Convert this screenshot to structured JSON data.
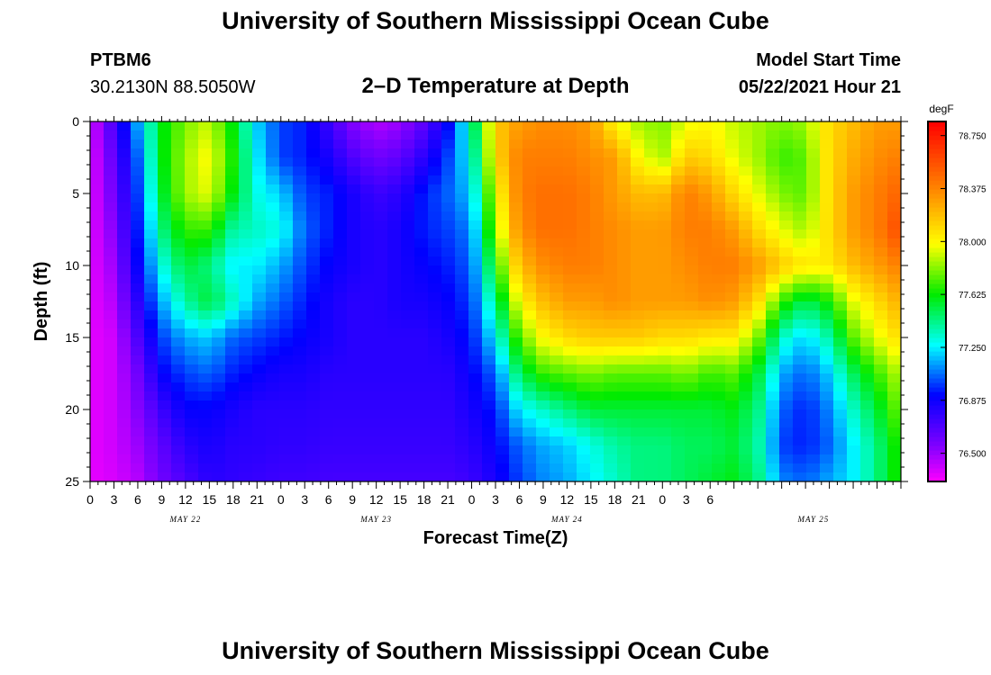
{
  "header": {
    "title": "University of Southern Mississippi Ocean Cube",
    "station_id": "PTBM6",
    "coordinates": "30.2130N  88.5050W",
    "plot_title": "2–D Temperature at Depth",
    "start_label": "Model Start Time",
    "start_time": "05/22/2021 Hour 21"
  },
  "footer": {
    "title": "University of Southern Mississippi Ocean Cube"
  },
  "chart_data": {
    "type": "heatmap",
    "title": "2–D Temperature at Depth",
    "xlabel": "Forecast Time(Z)",
    "ylabel": "Depth (ft)",
    "x_unit": "hours since model start (05/22/2021 21Z)",
    "x_range": [
      -21,
      81
    ],
    "y_range": [
      0,
      25
    ],
    "y_ticks": [
      0,
      5,
      10,
      15,
      20,
      25
    ],
    "x_tick_labels": [
      "0",
      "3",
      "6",
      "9",
      "12",
      "15",
      "18",
      "21",
      "0",
      "3",
      "6",
      "9",
      "12",
      "15",
      "18",
      "21",
      "0",
      "3",
      "6",
      "9",
      "12",
      "15",
      "18",
      "21",
      "0",
      "3",
      "6"
    ],
    "date_labels": [
      "MAY 22",
      "MAY 23",
      "MAY 24",
      "MAY 25"
    ],
    "colorbar": {
      "unit": "degF",
      "min": 76.3,
      "max": 78.85,
      "ticks": [
        76.5,
        76.875,
        77.25,
        77.625,
        78.0,
        78.375,
        78.75
      ],
      "tick_labels": [
        "76.500",
        "76.875",
        "77.250",
        "77.625",
        "78.000",
        "78.375",
        "78.750"
      ]
    },
    "depths": [
      0,
      2.5,
      5,
      7.5,
      10,
      12.5,
      15,
      17.5,
      20,
      22.5,
      25
    ],
    "times": [
      -21,
      -18,
      -15,
      -12,
      -9,
      -6,
      -3,
      0,
      3,
      6,
      9,
      12,
      15,
      18,
      21,
      24,
      27,
      30,
      33,
      36,
      39,
      42,
      45,
      48,
      51,
      54,
      57,
      60,
      63,
      66,
      69,
      72,
      75,
      78,
      81
    ],
    "values": [
      [
        76.37,
        76.72,
        77.15,
        77.6,
        77.8,
        77.9,
        77.6,
        77.2,
        77.0,
        76.95,
        76.75,
        76.55,
        76.45,
        76.5,
        76.65,
        76.9,
        77.4,
        78.15,
        78.3,
        78.35,
        78.35,
        78.3,
        78.0,
        77.85,
        77.8,
        77.95,
        78.0,
        77.9,
        77.85,
        77.8,
        77.85,
        78.1,
        78.2,
        78.3,
        78.3
      ],
      [
        76.35,
        76.65,
        77.05,
        77.6,
        77.85,
        78.0,
        77.65,
        77.25,
        77.0,
        76.95,
        76.85,
        76.7,
        76.6,
        76.65,
        76.8,
        77.0,
        77.3,
        78.1,
        78.4,
        78.4,
        78.4,
        78.35,
        78.3,
        78.0,
        77.85,
        78.15,
        78.1,
        77.95,
        77.85,
        77.7,
        77.75,
        78.1,
        78.25,
        78.35,
        78.4
      ],
      [
        76.35,
        76.6,
        77.0,
        77.55,
        77.85,
        77.95,
        77.6,
        77.3,
        77.2,
        77.0,
        76.95,
        76.85,
        76.75,
        76.8,
        76.95,
        77.05,
        77.2,
        77.95,
        78.4,
        78.45,
        78.45,
        78.4,
        78.3,
        78.2,
        78.2,
        78.4,
        78.3,
        78.1,
        77.95,
        77.8,
        77.75,
        78.1,
        78.3,
        78.4,
        78.5
      ],
      [
        76.35,
        76.55,
        76.95,
        77.45,
        77.7,
        77.7,
        77.4,
        77.35,
        77.3,
        77.05,
        76.95,
        76.85,
        76.8,
        76.85,
        76.95,
        77.0,
        77.1,
        77.85,
        78.35,
        78.45,
        78.45,
        78.4,
        78.35,
        78.3,
        78.3,
        78.4,
        78.4,
        78.3,
        78.1,
        77.95,
        77.85,
        78.1,
        78.3,
        78.4,
        78.6
      ],
      [
        76.35,
        76.5,
        76.9,
        77.3,
        77.55,
        77.45,
        77.25,
        77.25,
        77.15,
        77.0,
        76.9,
        76.85,
        76.8,
        76.85,
        76.9,
        76.95,
        77.05,
        77.65,
        78.2,
        78.35,
        78.4,
        78.4,
        78.35,
        78.3,
        78.3,
        78.35,
        78.4,
        78.4,
        78.3,
        78.15,
        78.05,
        78.05,
        78.2,
        78.3,
        78.4
      ],
      [
        76.35,
        76.45,
        76.8,
        77.15,
        77.4,
        77.55,
        77.35,
        77.15,
        77.05,
        76.95,
        76.85,
        76.8,
        76.8,
        76.85,
        76.85,
        76.9,
        77.0,
        77.45,
        78.0,
        78.2,
        78.3,
        78.3,
        78.35,
        78.3,
        78.3,
        78.3,
        78.35,
        78.3,
        78.1,
        77.7,
        77.5,
        77.65,
        77.95,
        78.1,
        78.25
      ],
      [
        76.35,
        76.4,
        76.7,
        77.0,
        77.15,
        77.2,
        77.05,
        77.0,
        76.95,
        76.9,
        76.85,
        76.8,
        76.8,
        76.8,
        76.8,
        76.85,
        76.95,
        77.25,
        77.75,
        78.0,
        78.1,
        78.15,
        78.15,
        78.15,
        78.1,
        78.1,
        78.05,
        78.05,
        77.8,
        77.35,
        77.2,
        77.4,
        77.75,
        77.95,
        78.1
      ],
      [
        76.35,
        76.4,
        76.6,
        76.9,
        77.0,
        77.05,
        76.95,
        76.9,
        76.85,
        76.85,
        76.8,
        76.8,
        76.8,
        76.8,
        76.8,
        76.8,
        76.9,
        77.05,
        77.5,
        77.7,
        77.75,
        77.8,
        77.75,
        77.75,
        77.75,
        77.8,
        77.7,
        77.75,
        77.55,
        77.15,
        77.05,
        77.2,
        77.5,
        77.7,
        77.9
      ],
      [
        76.35,
        76.4,
        76.55,
        76.75,
        76.9,
        76.9,
        76.85,
        76.8,
        76.8,
        76.8,
        76.78,
        76.78,
        76.78,
        76.78,
        76.78,
        76.78,
        76.85,
        76.95,
        77.25,
        77.35,
        77.45,
        77.55,
        77.55,
        77.55,
        77.55,
        77.55,
        77.55,
        77.6,
        77.45,
        77.05,
        76.95,
        77.1,
        77.35,
        77.55,
        77.8
      ],
      [
        76.35,
        76.4,
        76.5,
        76.65,
        76.8,
        76.85,
        76.8,
        76.8,
        76.78,
        76.78,
        76.76,
        76.76,
        76.76,
        76.76,
        76.76,
        76.76,
        76.8,
        76.9,
        77.05,
        77.15,
        77.2,
        77.3,
        77.4,
        77.45,
        77.45,
        77.5,
        77.5,
        77.55,
        77.4,
        77.0,
        76.95,
        77.05,
        77.25,
        77.45,
        77.7
      ],
      [
        76.35,
        76.38,
        76.45,
        76.6,
        76.7,
        76.8,
        76.78,
        76.76,
        76.74,
        76.74,
        76.72,
        76.72,
        76.72,
        76.72,
        76.72,
        76.72,
        76.75,
        76.85,
        77.0,
        77.1,
        77.15,
        77.25,
        77.35,
        77.45,
        77.45,
        77.5,
        77.55,
        77.6,
        77.45,
        77.1,
        77.05,
        77.15,
        77.25,
        77.45,
        77.7
      ]
    ]
  }
}
